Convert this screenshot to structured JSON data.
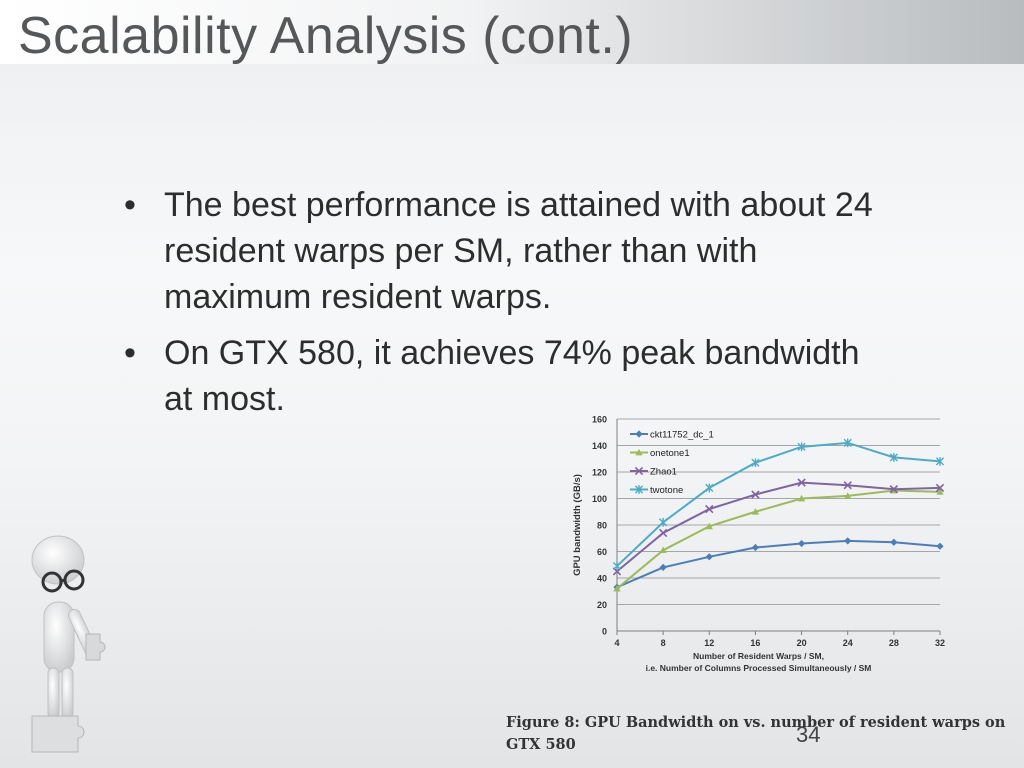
{
  "slide": {
    "title": "Scalability Analysis (cont.)",
    "page_number": "34"
  },
  "bullets": [
    {
      "marker": "•",
      "text": "The best performance is attained with about 24 resident warps per SM, rather than with maximum resident warps."
    },
    {
      "marker": "•",
      "text": "On GTX 580, it achieves 74% peak bandwidth at most."
    }
  ],
  "caption": "Figure 8: GPU Bandwidth on vs. number of resident warps on GTX 580",
  "chart_data": {
    "type": "line",
    "x": [
      4,
      8,
      12,
      16,
      20,
      24,
      28,
      32
    ],
    "series": [
      {
        "name": "ckt11752_dc_1",
        "color": "#4a7ebb",
        "marker": "diamond",
        "values": [
          33,
          48,
          56,
          63,
          66,
          68,
          67,
          64
        ]
      },
      {
        "name": "onetone1",
        "color": "#9bbb59",
        "marker": "triangle",
        "values": [
          32,
          61,
          79,
          90,
          100,
          102,
          106,
          105
        ]
      },
      {
        "name": "Zhao1",
        "color": "#8064a2",
        "marker": "x",
        "values": [
          45,
          74,
          92,
          103,
          112,
          110,
          107,
          108
        ]
      },
      {
        "name": "twotone",
        "color": "#4bacc6",
        "marker": "star",
        "values": [
          49,
          82,
          108,
          127,
          139,
          142,
          131,
          128
        ]
      }
    ],
    "xlabel": "Number of Resident Warps / SM,",
    "xlabel2": "i.e. Number of Columns Processed Simultaneously / SM",
    "ylabel": "GPU bandwidth (GB/s)",
    "xticks": [
      4,
      8,
      12,
      16,
      20,
      24,
      28,
      32
    ],
    "yticks": [
      0,
      20,
      40,
      60,
      80,
      100,
      120,
      140,
      160
    ],
    "xlim": [
      4,
      32
    ],
    "ylim": [
      0,
      160
    ],
    "grid": true,
    "legend": "top-left"
  }
}
